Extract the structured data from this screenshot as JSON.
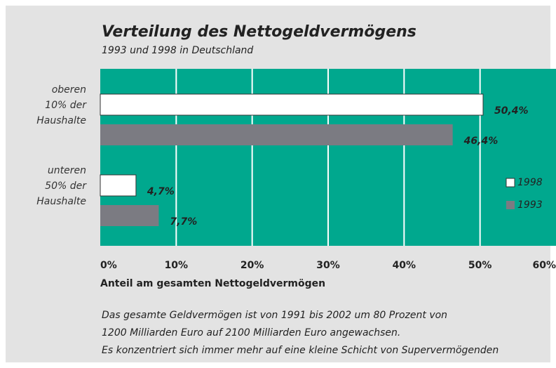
{
  "chart_data": {
    "type": "hbar",
    "title": "Verteilung des Nettogeldvermögens",
    "subtitle": "1993 und 1998 in Deutschland",
    "x_label": "Anteil am gesamten Nettogeldvermögen",
    "categories": [
      "oberen\n10% der\nHaushalte",
      "unteren\n50% der\nHaushalte"
    ],
    "series": [
      {
        "name": "1998",
        "color": "#ffffff",
        "values": [
          50.4,
          4.7
        ],
        "value_labels": [
          "50,4%",
          "4,7%"
        ]
      },
      {
        "name": "1993",
        "color": "#7b7b82",
        "values": [
          46.4,
          7.7
        ],
        "value_labels": [
          "46,4%",
          "7,7%"
        ]
      }
    ],
    "xlim": [
      0,
      60
    ],
    "xticks": [
      {
        "value": 0,
        "label": "0%"
      },
      {
        "value": 10,
        "label": "10%"
      },
      {
        "value": 20,
        "label": "20%"
      },
      {
        "value": 30,
        "label": "30%"
      },
      {
        "value": 40,
        "label": "40%"
      },
      {
        "value": 50,
        "label": "50%"
      },
      {
        "value": 60,
        "label": "60%"
      }
    ],
    "grid": true,
    "plot_color": "#00a88e",
    "notes": [
      "Das gesamte Geldvermögen ist von 1991 bis 2002 um 80 Prozent von",
      "1200 Milliarden Euro auf 2100 Milliarden Euro angewachsen.",
      "Es konzentriert sich immer mehr auf eine kleine Schicht von Supervermögenden"
    ]
  }
}
